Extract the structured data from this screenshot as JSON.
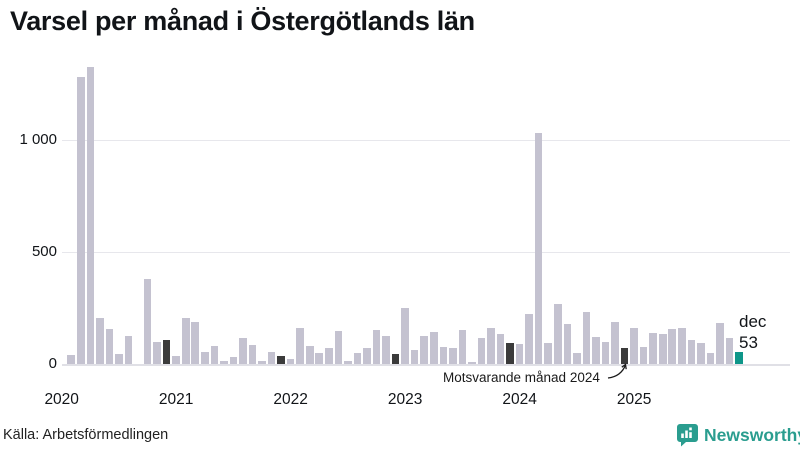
{
  "page": {
    "title": "Varsel per månad i Östergötlands län"
  },
  "footer": {
    "source": "Källa: Arbetsförmedlingen",
    "brand": "Newsworthy"
  },
  "colors": {
    "bar": "#c4c2d0",
    "december_bar": "#3b3b3b",
    "latest_bar": "#0e9689",
    "brand_teal": "#2a9d8f",
    "gridline": "#e7e7ec",
    "text": "#111418"
  },
  "chart_data": {
    "type": "bar",
    "title": "Varsel per månad i Östergötlands län",
    "xlabel": "",
    "ylabel": "",
    "ylim": [
      0,
      1340
    ],
    "grid": "horizontal",
    "x_years": [
      "2020",
      "2021",
      "2022",
      "2023",
      "2024",
      "2025"
    ],
    "y_axis": {
      "tick_values": [
        0,
        500,
        1000
      ],
      "tick_labels": [
        "0",
        "500",
        "1 000"
      ]
    },
    "monthly_values": {
      "2020": [
        0,
        40,
        1283,
        1327,
        205,
        155,
        45,
        125,
        0,
        379,
        98,
        108
      ],
      "2021": [
        38,
        204,
        189,
        55,
        80,
        13,
        30,
        115,
        85,
        15,
        55,
        36
      ],
      "2022": [
        22,
        162,
        82,
        50,
        70,
        147,
        13,
        48,
        70,
        152,
        126,
        43
      ],
      "2023": [
        251,
        62,
        126,
        144,
        77,
        73,
        152,
        8,
        115,
        159,
        132,
        92
      ],
      "2024": [
        90,
        223,
        1030,
        92,
        266,
        177,
        50,
        230,
        120,
        100,
        189,
        73
      ],
      "2025": [
        162,
        77,
        140,
        132,
        155,
        162,
        107,
        95,
        48,
        182,
        115,
        53
      ]
    },
    "bar_color": "#c4c2d0",
    "december_bar_color": "#3b3b3b",
    "latest_bar_color": "#0e9689",
    "annotation": {
      "text": "Motsvarande månad 2024",
      "target_month": "2024-12"
    },
    "latest_label": {
      "month_label": "dec",
      "value_label": "53",
      "target_month": "2025-12"
    }
  }
}
